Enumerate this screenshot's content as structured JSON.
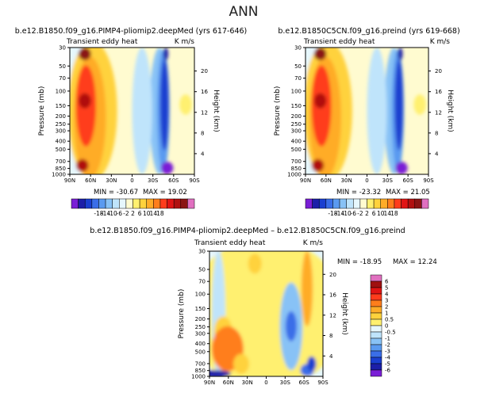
{
  "page_title": "ANN",
  "chart_data": [
    {
      "type": "heatmap",
      "id": "p1",
      "title": "b.e12.B1850.f09_g16.PIMP4-pliomip2.deepMed (yrs 617-646)",
      "subtitle_left": "Transient eddy heat",
      "subtitle_right": "K m/s",
      "xlabel": "",
      "ylabel": "Pressure (mb)",
      "ylabel_right": "Height (km)",
      "x_ticks": [
        "90N",
        "60N",
        "30N",
        "0",
        "30S",
        "60S",
        "90S"
      ],
      "y_ticks": [
        "30",
        "50",
        "70",
        "100",
        "150",
        "200",
        "250",
        "300",
        "400",
        "500",
        "700",
        "850",
        "1000"
      ],
      "y_ticks_right": [
        "20",
        "16",
        "12",
        "8",
        "4"
      ],
      "min_label": "MIN = -30.67",
      "max_label": "MAX = 19.02",
      "min": -30.67,
      "max": 19.02,
      "levels": [
        "-18",
        "-14",
        "-10",
        "-6",
        "-2",
        "2",
        "6",
        "10",
        "14",
        "18"
      ],
      "colors": [
        "#7a1fd6",
        "#1c1fa8",
        "#1a3fd0",
        "#3a6ee8",
        "#5a9af0",
        "#88c2f6",
        "#bfe4fb",
        "#e6f7fd",
        "#fffbd0",
        "#fff070",
        "#ffd23c",
        "#ffac28",
        "#ff7e1c",
        "#ff3c1c",
        "#e01414",
        "#b01010",
        "#8a1414",
        "#e070c0"
      ],
      "colorbar_labels": [
        "-18",
        "-14",
        "-10",
        "-6",
        "-2",
        "2",
        "6",
        "10",
        "14",
        "18"
      ]
    },
    {
      "type": "heatmap",
      "id": "p2",
      "title": "b.e12.B1850C5CN.f09_g16.preind (yrs 619-668)",
      "subtitle_left": "Transient eddy heat",
      "subtitle_right": "K m/s",
      "xlabel": "",
      "ylabel": "Pressure (mb)",
      "ylabel_right": "Height (km)",
      "x_ticks": [
        "90N",
        "60N",
        "30N",
        "0",
        "30S",
        "60S",
        "90S"
      ],
      "y_ticks": [
        "30",
        "50",
        "70",
        "100",
        "150",
        "200",
        "250",
        "300",
        "400",
        "500",
        "700",
        "850",
        "1000"
      ],
      "y_ticks_right": [
        "20",
        "16",
        "12",
        "8",
        "4"
      ],
      "min_label": "MIN = -23.32",
      "max_label": "MAX = 21.05",
      "min": -23.32,
      "max": 21.05,
      "levels": [
        "-18",
        "-14",
        "-10",
        "-6",
        "-2",
        "2",
        "6",
        "10",
        "14",
        "18"
      ],
      "colors": [
        "#7a1fd6",
        "#1c1fa8",
        "#1a3fd0",
        "#3a6ee8",
        "#5a9af0",
        "#88c2f6",
        "#bfe4fb",
        "#e6f7fd",
        "#fffbd0",
        "#fff070",
        "#ffd23c",
        "#ffac28",
        "#ff7e1c",
        "#ff3c1c",
        "#e01414",
        "#b01010",
        "#8a1414",
        "#e070c0"
      ],
      "colorbar_labels": [
        "-18",
        "-14",
        "-10",
        "-6",
        "-2",
        "2",
        "6",
        "10",
        "14",
        "18"
      ]
    },
    {
      "type": "heatmap",
      "id": "p3",
      "title": "b.e12.B1850.f09_g16.PIMP4-pliomip2.deepMed – b.e12.B1850C5CN.f09_g16.preind",
      "subtitle_left": "Transient eddy heat",
      "subtitle_right": "K m/s",
      "xlabel": "",
      "ylabel": "Pressure (mb)",
      "ylabel_right": "Height (km)",
      "x_ticks": [
        "90N",
        "60N",
        "30N",
        "0",
        "30S",
        "60S",
        "90S"
      ],
      "y_ticks": [
        "30",
        "50",
        "70",
        "100",
        "150",
        "200",
        "250",
        "300",
        "400",
        "500",
        "700",
        "850",
        "1000"
      ],
      "y_ticks_right": [
        "20",
        "16",
        "12",
        "8",
        "4"
      ],
      "min_label": "MIN = -18.95",
      "max_label": "MAX =  12.24",
      "min": -18.95,
      "max": 12.24,
      "levels": [
        "6",
        "5",
        "4",
        "3",
        "2",
        "1",
        "0.5",
        "0",
        "-0.5",
        "-1",
        "-2",
        "-3",
        "-4",
        "-5",
        "-6"
      ],
      "colors": [
        "#e070c0",
        "#a01010",
        "#e01414",
        "#ff3c1c",
        "#ff7e1c",
        "#ffac28",
        "#ffd23c",
        "#fff070",
        "#e6f7fd",
        "#bfe4fb",
        "#88c2f6",
        "#5a9af0",
        "#3a6ee8",
        "#1a3fd0",
        "#1c1fa8",
        "#7a1fd6"
      ],
      "colorbar_labels": [
        "6",
        "5",
        "4",
        "3",
        "2",
        "1",
        "0.5",
        "0",
        "-0.5",
        "-1",
        "-2",
        "-3",
        "-4",
        "-5",
        "-6"
      ]
    }
  ]
}
